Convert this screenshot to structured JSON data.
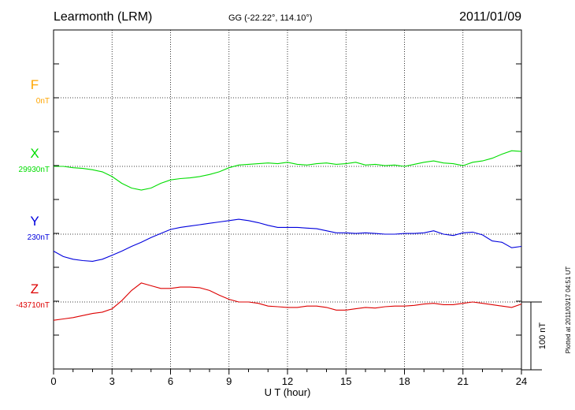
{
  "header": {
    "station": "Learmonth (LRM)",
    "coords": "GG (-22.22°, 114.10°)",
    "date": "2011/01/09"
  },
  "footer_note": "Plotted at 2011/03/17 04:51  UT",
  "scale_label": "100 nT",
  "chart_data": {
    "type": "line",
    "title": "Learmonth (LRM)",
    "xlabel": "U T (hour)",
    "xlim": [
      0,
      24
    ],
    "x_ticks": [
      0,
      3,
      6,
      9,
      12,
      15,
      18,
      21,
      24
    ],
    "grid": true,
    "scale_bar_nT": 100,
    "series": [
      {
        "name": "F",
        "baseline_label": "0nT",
        "color": "#ffa500",
        "x": [],
        "values": []
      },
      {
        "name": "X",
        "baseline_label": "29930nT",
        "color": "#00dd00",
        "x": [
          0,
          0.5,
          1,
          1.5,
          2,
          2.5,
          3,
          3.5,
          4,
          4.5,
          5,
          5.5,
          6,
          6.5,
          7,
          7.5,
          8,
          8.5,
          9,
          9.5,
          10,
          10.5,
          11,
          11.5,
          12,
          12.5,
          13,
          13.5,
          14,
          14.5,
          15,
          15.5,
          16,
          16.5,
          17,
          17.5,
          18,
          18.5,
          19,
          19.5,
          20,
          20.5,
          21,
          21.5,
          22,
          22.5,
          23,
          23.5,
          24
        ],
        "values": [
          29930,
          29930,
          29928,
          29927,
          29925,
          29922,
          29915,
          29905,
          29898,
          29895,
          29898,
          29905,
          29910,
          29912,
          29913,
          29915,
          29918,
          29922,
          29928,
          29932,
          29933,
          29934,
          29935,
          29934,
          29936,
          29933,
          29932,
          29934,
          29935,
          29933,
          29934,
          29936,
          29932,
          29933,
          29931,
          29932,
          29930,
          29933,
          29936,
          29938,
          29935,
          29934,
          29931,
          29936,
          29938,
          29942,
          29948,
          29953,
          29952
        ]
      },
      {
        "name": "Y",
        "baseline_label": "230nT",
        "color": "#0000dd",
        "x": [
          0,
          0.5,
          1,
          1.5,
          2,
          2.5,
          3,
          3.5,
          4,
          4.5,
          5,
          5.5,
          6,
          6.5,
          7,
          7.5,
          8,
          8.5,
          9,
          9.5,
          10,
          10.5,
          11,
          11.5,
          12,
          12.5,
          13,
          13.5,
          14,
          14.5,
          15,
          15.5,
          16,
          16.5,
          17,
          17.5,
          18,
          18.5,
          19,
          19.5,
          20,
          20.5,
          21,
          21.5,
          22,
          22.5,
          23,
          23.5,
          24
        ],
        "values": [
          205,
          197,
          193,
          191,
          190,
          193,
          199,
          205,
          212,
          218,
          225,
          231,
          237,
          240,
          242,
          244,
          246,
          248,
          250,
          252,
          250,
          247,
          243,
          240,
          240,
          240,
          239,
          238,
          235,
          232,
          232,
          231,
          232,
          231,
          230,
          230,
          231,
          231,
          232,
          235,
          230,
          228,
          232,
          233,
          229,
          220,
          218,
          210,
          212
        ]
      },
      {
        "name": "Z",
        "baseline_label": "-43710nT",
        "color": "#dd0000",
        "x": [
          0,
          0.5,
          1,
          1.5,
          2,
          2.5,
          3,
          3.5,
          4,
          4.5,
          5,
          5.5,
          6,
          6.5,
          7,
          7.5,
          8,
          8.5,
          9,
          9.5,
          10,
          10.5,
          11,
          11.5,
          12,
          12.5,
          13,
          13.5,
          14,
          14.5,
          15,
          15.5,
          16,
          16.5,
          17,
          17.5,
          18,
          18.5,
          19,
          19.5,
          20,
          20.5,
          21,
          21.5,
          22,
          22.5,
          23,
          23.5,
          24
        ],
        "values": [
          -43737,
          -43735,
          -43733,
          -43730,
          -43727,
          -43725,
          -43720,
          -43708,
          -43693,
          -43682,
          -43686,
          -43690,
          -43690,
          -43688,
          -43688,
          -43689,
          -43693,
          -43700,
          -43706,
          -43710,
          -43710,
          -43712,
          -43716,
          -43717,
          -43718,
          -43718,
          -43716,
          -43716,
          -43718,
          -43722,
          -43722,
          -43720,
          -43718,
          -43719,
          -43717,
          -43716,
          -43716,
          -43715,
          -43713,
          -43712,
          -43714,
          -43714,
          -43712,
          -43710,
          -43712,
          -43714,
          -43716,
          -43718,
          -43713
        ]
      }
    ]
  }
}
